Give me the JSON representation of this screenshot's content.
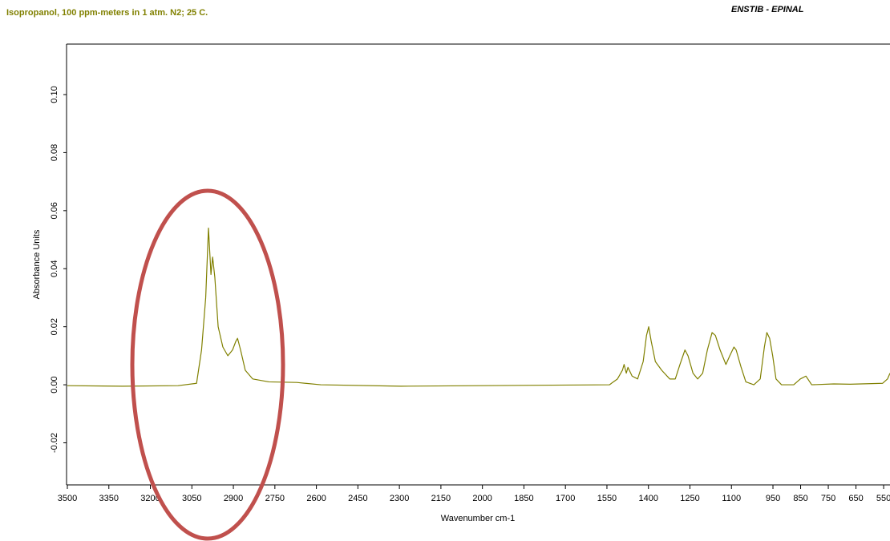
{
  "chart_data": {
    "type": "line",
    "title": "Isopropanol, 100 ppm-meters in 1 atm. N2; 25 C.",
    "subtitle": "ENSTIB - EPINAL",
    "x_label": "Wavenumber cm-1",
    "y_label": "Absorbance Units",
    "xlim": [
      3500,
      527
    ],
    "ylim": [
      -0.0345,
      0.1174
    ],
    "xticks": [
      3500,
      3350,
      3200,
      3050,
      2900,
      2750,
      2600,
      2450,
      2300,
      2150,
      2000,
      1850,
      1700,
      1550,
      1400,
      1250,
      1100,
      950,
      850,
      750,
      650,
      550
    ],
    "yticks": [
      {
        "value": -0.02,
        "label": "-0.02"
      },
      {
        "value": 0,
        "label": "0.00"
      },
      {
        "value": 0.02,
        "label": "0.02"
      },
      {
        "value": 0.04,
        "label": "0.04"
      },
      {
        "value": 0.06,
        "label": "0.06"
      },
      {
        "value": 0.08,
        "label": "0.08"
      },
      {
        "value": 0.1,
        "label": "0.10"
      }
    ],
    "grid": false,
    "series": [
      {
        "name": "Isopropanol",
        "color": "#808000",
        "x": [
          3500,
          3300,
          3100,
          3033,
          3015,
          3000,
          2990,
          2981,
          2975,
          2967,
          2955,
          2938,
          2920,
          2903,
          2891,
          2885,
          2874,
          2857,
          2830,
          2772,
          2671,
          2584,
          2294,
          1541,
          1512,
          1494,
          1488,
          1480,
          1474,
          1459,
          1439,
          1419,
          1407,
          1399,
          1390,
          1375,
          1352,
          1323,
          1303,
          1286,
          1268,
          1257,
          1239,
          1222,
          1204,
          1187,
          1170,
          1158,
          1141,
          1120,
          1106,
          1091,
          1083,
          1065,
          1048,
          1019,
          996,
          981,
          972,
          962,
          951,
          939,
          919,
          875,
          851,
          831,
          810,
          730,
          671,
          554,
          536,
          527
        ],
        "values": [
          -0.0003,
          -0.0005,
          -0.0003,
          0.0005,
          0.012,
          0.03,
          0.054,
          0.038,
          0.044,
          0.037,
          0.02,
          0.013,
          0.01,
          0.012,
          0.015,
          0.016,
          0.012,
          0.005,
          0.002,
          0.001,
          0.0008,
          0,
          -0.0005,
          0,
          0.002,
          0.005,
          0.007,
          0.004,
          0.006,
          0.003,
          0.002,
          0.008,
          0.017,
          0.02,
          0.015,
          0.008,
          0.005,
          0.002,
          0.002,
          0.007,
          0.012,
          0.01,
          0.004,
          0.002,
          0.004,
          0.012,
          0.018,
          0.017,
          0.012,
          0.007,
          0.01,
          0.013,
          0.012,
          0.006,
          0.001,
          0,
          0.002,
          0.013,
          0.018,
          0.016,
          0.01,
          0.002,
          0,
          0,
          0.002,
          0.003,
          0,
          0.0003,
          0.0002,
          0.0005,
          0.002,
          0.004
        ]
      }
    ]
  }
}
